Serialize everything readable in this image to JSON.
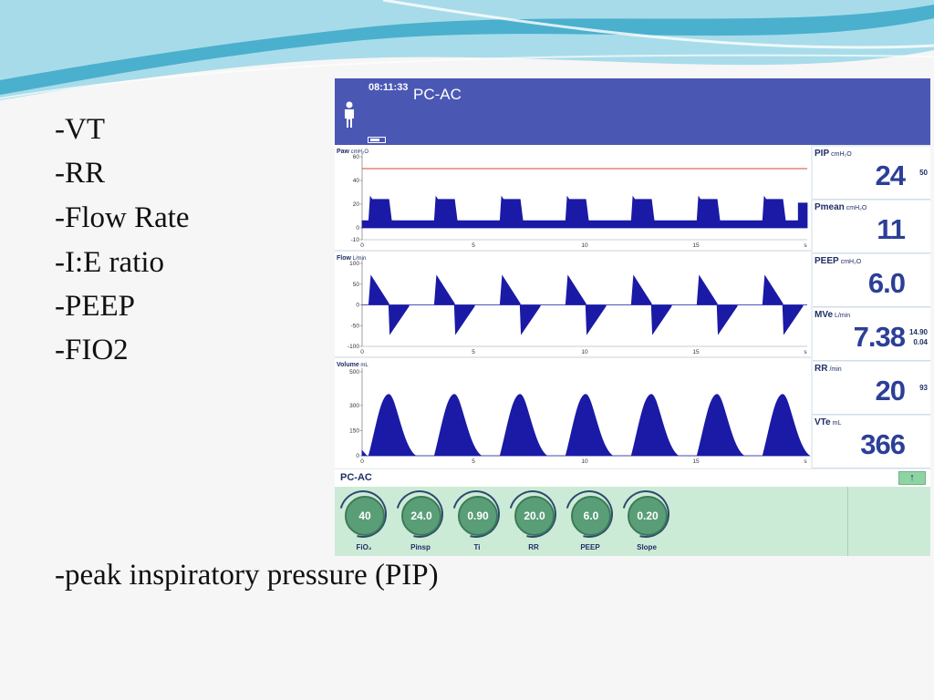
{
  "slide": {
    "bullets": [
      "-VT",
      "-RR",
      "-Flow Rate",
      "-I:E ratio",
      "-PEEP",
      "-FIO2"
    ],
    "footer_bullet": "-peak inspiratory pressure (PIP)",
    "colors": {
      "swoosh_dark": "#3aa8c8",
      "swoosh_light": "#a8dcea",
      "background": "#f6f6f6"
    }
  },
  "ventilator": {
    "clock": "08:11:33",
    "mode": "PC-AC",
    "icons": [
      "person-icon",
      "battery-icon",
      "up-arrow-icon"
    ],
    "colors": {
      "header": "#4a58b4",
      "waveform": "#1a1aa6",
      "limit_line": "#d24a3a",
      "value_text": "#2c3f97",
      "knob_panel": "#ccebd6"
    },
    "waveforms": [
      {
        "label": "Paw",
        "unit": "cmH₂O",
        "y_ticks": [
          "60",
          "40",
          "20",
          "0",
          "-10"
        ],
        "x_ticks": [
          "0",
          "5",
          "10",
          "15",
          "s"
        ],
        "ylim": [
          -10,
          60
        ],
        "limit_line": 50,
        "peak": 24,
        "baseline": 6
      },
      {
        "label": "Flow",
        "unit": "L/min",
        "y_ticks": [
          "100",
          "50",
          "0",
          "-50",
          "-100"
        ],
        "x_ticks": [
          "0",
          "5",
          "10",
          "15",
          "s"
        ],
        "ylim": [
          -100,
          100
        ]
      },
      {
        "label": "Volume",
        "unit": "mL",
        "y_ticks": [
          "500",
          "300",
          "150",
          "0"
        ],
        "x_ticks": [
          "0",
          "5",
          "10",
          "15",
          "s"
        ],
        "ylim": [
          0,
          500
        ],
        "peak": 366
      }
    ],
    "readouts": [
      {
        "label": "PIP",
        "unit": "cmH₂O",
        "value": "24",
        "limits": [
          "50"
        ]
      },
      {
        "label": "Pmean",
        "unit": "cmH₂O",
        "value": "11",
        "limits": []
      },
      {
        "label": "PEEP",
        "unit": "cmH₂O",
        "value": "6.0",
        "limits": []
      },
      {
        "label": "MVe",
        "unit": "L/min",
        "value": "7.38",
        "limits": [
          "14.90",
          "0.04"
        ]
      },
      {
        "label": "RR",
        "unit": "/min",
        "value": "20",
        "limits": [
          "93"
        ]
      },
      {
        "label": "VTe",
        "unit": "mL",
        "value": "366",
        "limits": []
      }
    ],
    "mode_bar": {
      "label": "PC-AC",
      "button": "↑"
    },
    "knobs": [
      {
        "value": "40",
        "name": "FiO₂"
      },
      {
        "value": "24.0",
        "name": "Pinsp"
      },
      {
        "value": "0.90",
        "name": "Ti"
      },
      {
        "value": "20.0",
        "name": "RR"
      },
      {
        "value": "6.0",
        "name": "PEEP"
      },
      {
        "value": "0.20",
        "name": "Slope"
      }
    ]
  }
}
